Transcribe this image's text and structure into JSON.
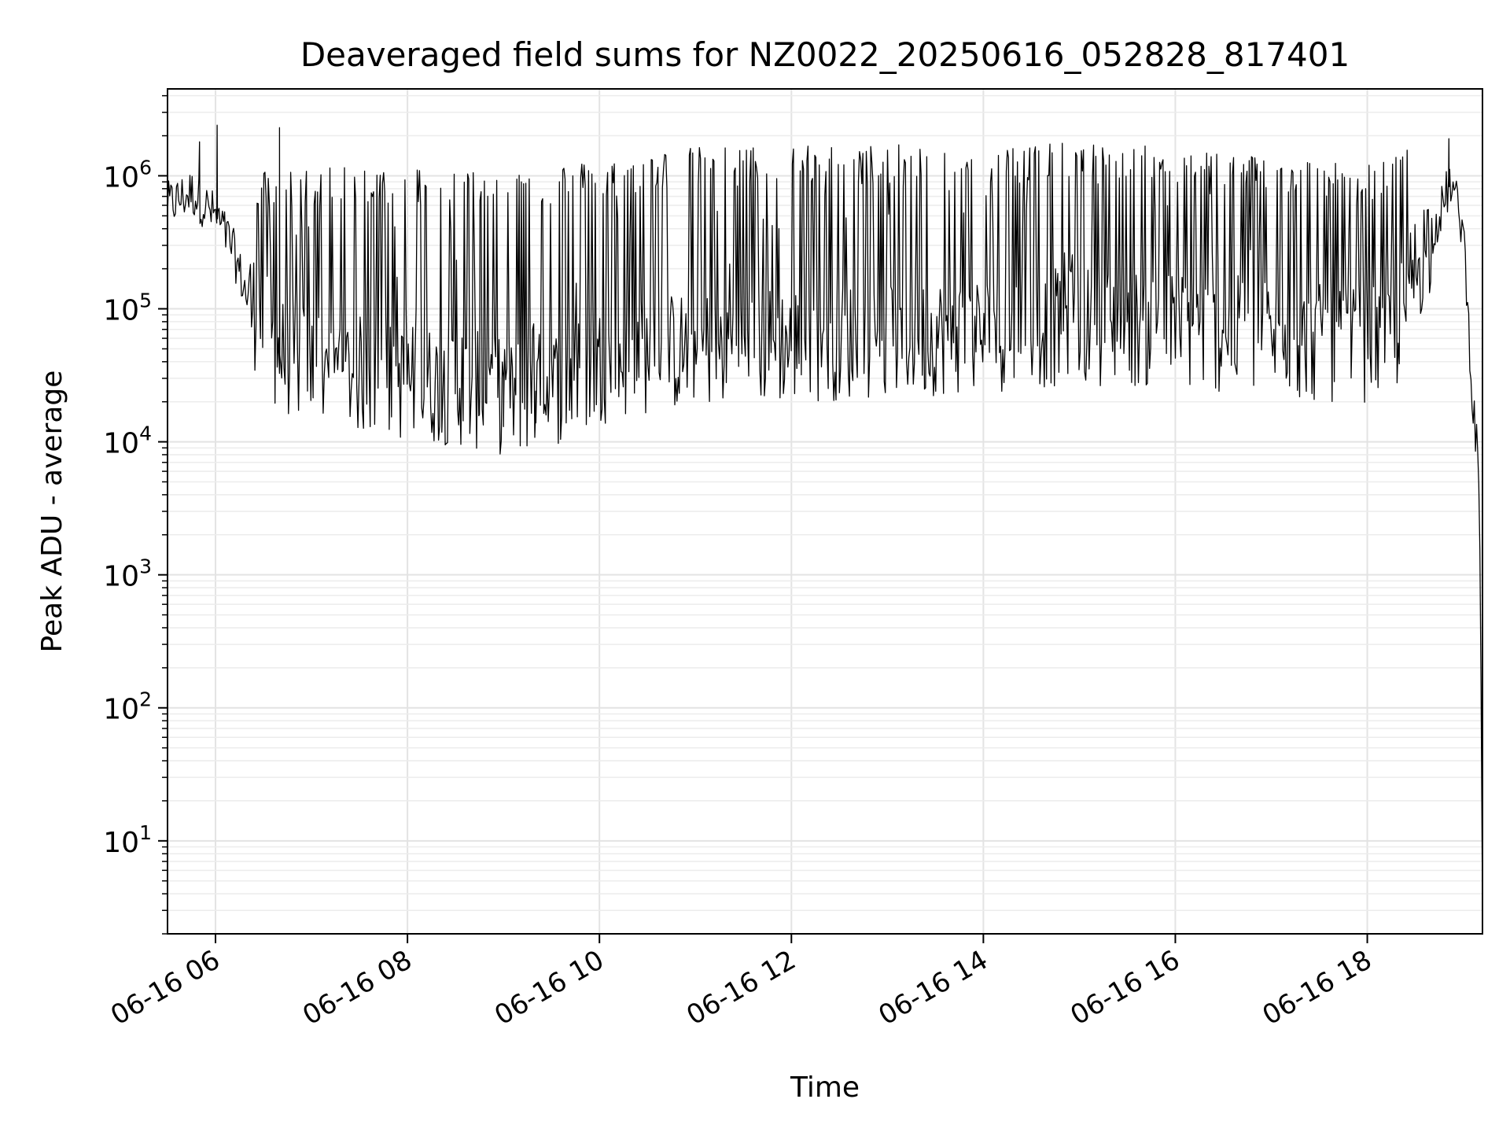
{
  "chart_data": {
    "type": "line",
    "title": "Deaveraged field sums for NZ0022_20250616_052828_817401",
    "xlabel": "Time",
    "ylabel": "Peak ADU - average",
    "yscale": "log",
    "grid": true,
    "grid_minor": true,
    "xlim": [
      "2025-06-16 05:30",
      "2025-06-16 19:12"
    ],
    "ylim": [
      2,
      4500000
    ],
    "x_ticks": [
      {
        "value": "2025-06-16 06:00",
        "label": "06-16 06"
      },
      {
        "value": "2025-06-16 08:00",
        "label": "06-16 08"
      },
      {
        "value": "2025-06-16 10:00",
        "label": "06-16 10"
      },
      {
        "value": "2025-06-16 12:00",
        "label": "06-16 12"
      },
      {
        "value": "2025-06-16 14:00",
        "label": "06-16 14"
      },
      {
        "value": "2025-06-16 16:00",
        "label": "06-16 16"
      },
      {
        "value": "2025-06-16 18:00",
        "label": "06-16 18"
      }
    ],
    "y_ticks": [
      {
        "value": 10,
        "base": "10",
        "exp": "1"
      },
      {
        "value": 100,
        "base": "10",
        "exp": "2"
      },
      {
        "value": 1000,
        "base": "10",
        "exp": "3"
      },
      {
        "value": 10000,
        "base": "10",
        "exp": "4"
      },
      {
        "value": 100000,
        "base": "10",
        "exp": "5"
      },
      {
        "value": 1000000,
        "base": "10",
        "exp": "6"
      }
    ],
    "line_color": "#000000",
    "series": [
      {
        "baseline_envelope": {
          "x": [
            "2025-06-16 05:30",
            "2025-06-16 05:45",
            "2025-06-16 06:00",
            "2025-06-16 06:10",
            "2025-06-16 06:20",
            "2025-06-16 06:40",
            "2025-06-16 07:00",
            "2025-06-16 07:30",
            "2025-06-16 08:00",
            "2025-06-16 08:30",
            "2025-06-16 09:00",
            "2025-06-16 09:20",
            "2025-06-16 09:40",
            "2025-06-16 10:00",
            "2025-06-16 10:30",
            "2025-06-16 11:00",
            "2025-06-16 12:00",
            "2025-06-16 13:00",
            "2025-06-16 14:00",
            "2025-06-16 15:00",
            "2025-06-16 16:00",
            "2025-06-16 17:00",
            "2025-06-16 17:30",
            "2025-06-16 18:00",
            "2025-06-16 18:15",
            "2025-06-16 18:30",
            "2025-06-16 18:45",
            "2025-06-16 18:52",
            "2025-06-16 19:00",
            "2025-06-16 19:06",
            "2025-06-16 19:10",
            "2025-06-16 19:12"
          ],
          "y": [
            600000,
            750000,
            500000,
            300000,
            120000,
            45000,
            38000,
            32000,
            28000,
            26000,
            22000,
            24000,
            28000,
            38000,
            45000,
            50000,
            55000,
            60000,
            65000,
            75000,
            70000,
            60000,
            55000,
            55000,
            50000,
            200000,
            500000,
            900000,
            400000,
            20000,
            5000,
            4
          ]
        },
        "spike_high_envelope": {
          "x": [
            "2025-06-16 06:30",
            "2025-06-16 08:00",
            "2025-06-16 09:00",
            "2025-06-16 10:00",
            "2025-06-16 11:00",
            "2025-06-16 12:00",
            "2025-06-16 13:00",
            "2025-06-16 14:00",
            "2025-06-16 15:00",
            "2025-06-16 16:00",
            "2025-06-16 17:00",
            "2025-06-16 18:00",
            "2025-06-16 18:45"
          ],
          "y": [
            1000000,
            1100000,
            1000000,
            1200000,
            1500000,
            1550000,
            1550000,
            1600000,
            1600000,
            1500000,
            1300000,
            1100000,
            1800000
          ]
        },
        "notable_peaks": [
          {
            "x": "2025-06-16 06:01",
            "y": 2400000
          },
          {
            "x": "2025-06-16 06:40",
            "y": 2300000
          },
          {
            "x": "2025-06-16 05:50",
            "y": 1800000
          },
          {
            "x": "2025-06-16 18:51",
            "y": 1900000
          }
        ],
        "notable_dips": [
          {
            "x": "2025-06-16 09:00",
            "y": 13000
          },
          {
            "x": "2025-06-16 09:20",
            "y": 15000
          },
          {
            "x": "2025-06-16 08:45",
            "y": 16000
          }
        ]
      }
    ]
  }
}
